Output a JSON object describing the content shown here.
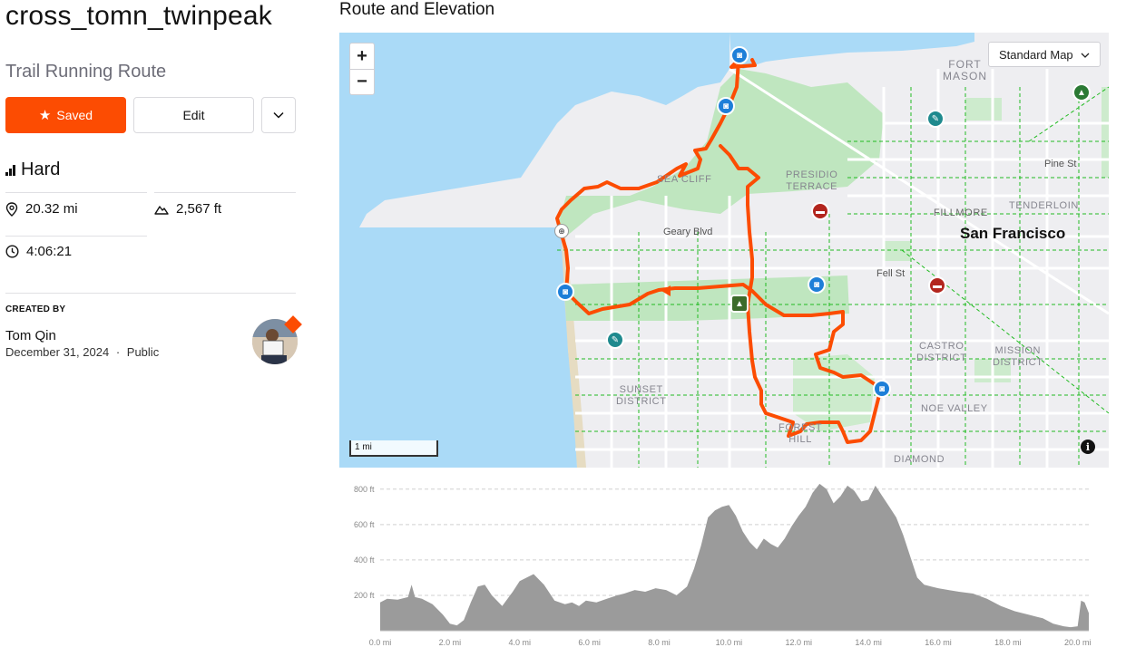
{
  "route": {
    "title": "cross_tomn_twinpeak",
    "subtitle": "Trail Running Route",
    "saved_label": "Saved",
    "edit_label": "Edit",
    "difficulty": "Hard",
    "distance": "20.32 mi",
    "elevation_gain": "2,567 ft",
    "time": "4:06:21"
  },
  "creator": {
    "label": "CREATED BY",
    "name": "Tom Qin",
    "date": "December 31, 2024",
    "separator": "·",
    "visibility": "Public"
  },
  "map": {
    "section_title": "Route and Elevation",
    "map_type": "Standard Map",
    "zoom_in": "+",
    "zoom_out": "−",
    "scale": "1 mi",
    "info": "i",
    "labels": {
      "fort_mason": "FORT\nMASON",
      "presidio_terrace": "PRESIDIO\nTERRACE",
      "sea_cliff": "SEA CLIFF",
      "pine_st": "Pine St",
      "tenderloin": "TENDERLOIN",
      "fillmore": "FILLMORE",
      "geary_blvd": "Geary Blvd",
      "san_francisco": "San Francisco",
      "fell_st": "Fell St",
      "castro_district": "CASTRO\nDISTRICT",
      "mission_district": "MISSION\nDISTRICT",
      "sunset_district": "SUNSET\nDISTRICT",
      "noe_valley": "NOE VALLEY",
      "forest_hill": "FOREST\nHILL",
      "diamond": "DIAMOND"
    },
    "colors": {
      "route": "#fc4c02",
      "water": "#aadaf7",
      "park": "#bfe6bf",
      "trail": "#22bb22"
    }
  },
  "chart_data": {
    "type": "area",
    "title": "",
    "xlabel": "",
    "ylabel": "",
    "xlim": [
      0,
      20.32
    ],
    "ylim": [
      0,
      850
    ],
    "y_ticks": [
      200,
      400,
      600,
      800
    ],
    "y_tick_labels": [
      "200 ft",
      "400 ft",
      "600 ft",
      "800 ft"
    ],
    "x_ticks": [
      0,
      2,
      4,
      6,
      8,
      10,
      12,
      14,
      16,
      18,
      20
    ],
    "x_tick_labels": [
      "0.0 mi",
      "2.0 mi",
      "4.0 mi",
      "6.0 mi",
      "8.0 mi",
      "10.0 mi",
      "12.0 mi",
      "14.0 mi",
      "16.0 mi",
      "18.0 mi",
      "20.0 mi"
    ],
    "grid": true,
    "series": [
      {
        "color": "#9b9b9b",
        "x": [
          0,
          0.2,
          0.5,
          0.8,
          0.9,
          1.0,
          1.2,
          1.5,
          1.8,
          2.0,
          2.2,
          2.4,
          2.6,
          2.8,
          3.0,
          3.2,
          3.5,
          3.8,
          4.0,
          4.2,
          4.4,
          4.7,
          5.0,
          5.3,
          5.5,
          5.7,
          5.9,
          6.2,
          6.5,
          6.8,
          7.0,
          7.3,
          7.6,
          7.9,
          8.2,
          8.5,
          8.8,
          9.0,
          9.2,
          9.4,
          9.6,
          9.8,
          10.0,
          10.2,
          10.4,
          10.6,
          10.8,
          11.0,
          11.2,
          11.4,
          11.6,
          11.8,
          12.0,
          12.2,
          12.4,
          12.6,
          12.8,
          13.0,
          13.2,
          13.4,
          13.6,
          13.8,
          14.0,
          14.2,
          14.4,
          14.6,
          14.8,
          15.0,
          15.2,
          15.4,
          15.6,
          15.8,
          16.0,
          16.3,
          16.6,
          17.0,
          17.4,
          17.8,
          18.2,
          18.6,
          19.0,
          19.3,
          19.6,
          19.8,
          20.0,
          20.1,
          20.2,
          20.32
        ],
        "y": [
          160,
          180,
          175,
          190,
          260,
          190,
          180,
          150,
          90,
          40,
          30,
          60,
          160,
          250,
          260,
          200,
          140,
          220,
          280,
          300,
          320,
          260,
          170,
          150,
          160,
          140,
          170,
          160,
          180,
          200,
          210,
          230,
          220,
          240,
          230,
          200,
          250,
          350,
          480,
          640,
          680,
          700,
          710,
          650,
          560,
          500,
          460,
          520,
          490,
          470,
          520,
          590,
          650,
          700,
          780,
          830,
          800,
          720,
          760,
          820,
          790,
          730,
          740,
          820,
          760,
          700,
          640,
          540,
          420,
          300,
          260,
          250,
          240,
          230,
          220,
          210,
          180,
          140,
          110,
          90,
          70,
          40,
          25,
          20,
          25,
          170,
          160,
          100
        ]
      }
    ]
  }
}
